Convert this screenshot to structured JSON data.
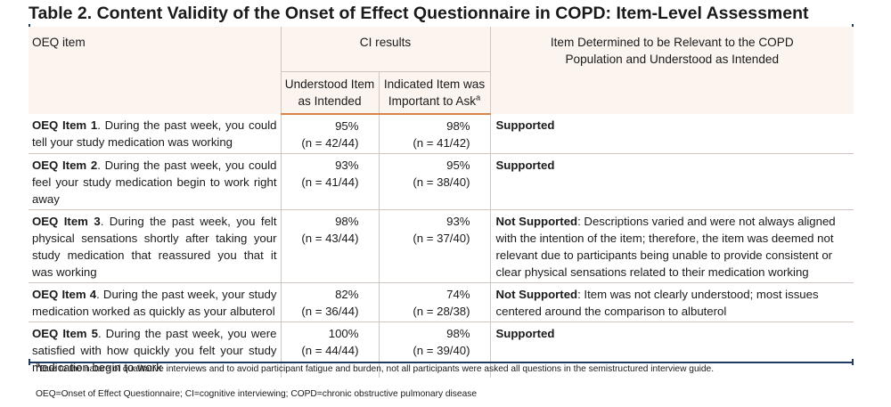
{
  "title": "Table 2. Content Validity of the Onset of Effect Questionnaire in COPD: Item-Level Assessment",
  "headers": {
    "item": "OEQ item",
    "ci_results": "CI results",
    "relevance_line1": "Item Determined to be Relevant to the COPD",
    "relevance_line2": "Population and Understood as Intended",
    "understood_line1": "Understood Item",
    "understood_line2": "as Intended",
    "important_line1": "Indicated Item was",
    "important_line2": "Important to Ask",
    "important_sup": "a"
  },
  "rows": [
    {
      "label": "OEQ Item 1",
      "text": ". During the past week, you could tell your study medication was working",
      "understood_pct": "95%",
      "understood_n": "(n = 42/44)",
      "important_pct": "98%",
      "important_n": "(n = 41/42)",
      "verdict": "Supported",
      "detail": ""
    },
    {
      "label": "OEQ Item 2",
      "text": ". During the past week, you could feel your study medication begin to work right away",
      "understood_pct": "93%",
      "understood_n": "(n = 41/44)",
      "important_pct": "95%",
      "important_n": "(n = 38/40)",
      "verdict": "Supported",
      "detail": ""
    },
    {
      "label": "OEQ Item 3",
      "text": ". During the past week, you felt physical sensations shortly after taking your study medication that reassured you that it was working",
      "understood_pct": "98%",
      "understood_n": "(n = 43/44)",
      "important_pct": "93%",
      "important_n": "(n = 37/40)",
      "verdict": "Not Supported",
      "detail": ": Descriptions varied and were not always aligned with the intention of the item; therefore, the item was deemed not relevant due to participants being unable to provide consistent or clear physical sensations related to their medication working"
    },
    {
      "label": "OEQ Item 4",
      "text": ". During the past week, your study medication worked as quickly as your albuterol",
      "understood_pct": "82%",
      "understood_n": "(n = 36/44)",
      "important_pct": "74%",
      "important_n": "(n = 28/38)",
      "verdict": "Not Supported",
      "detail": ": Item was not clearly understood; most issues centered around the comparison to albuterol"
    },
    {
      "label": "OEQ Item 5",
      "text": ". During the past week, you were satisfied with how quickly you felt your study medication begin to work",
      "understood_pct": "100%",
      "understood_n": "(n = 44/44)",
      "important_pct": "98%",
      "important_n": "(n = 39/40)",
      "verdict": "Supported",
      "detail": ""
    }
  ],
  "footnote_marker": "a",
  "footnote": "Due to the nature of qualitative interviews and to avoid participant fatigue and burden, not all participants were asked all questions in the semistructured interview guide.",
  "abbreviations": "OEQ=Onset of Effect Questionnaire; CI=cognitive interviewing; COPD=chronic obstructive pulmonary disease"
}
